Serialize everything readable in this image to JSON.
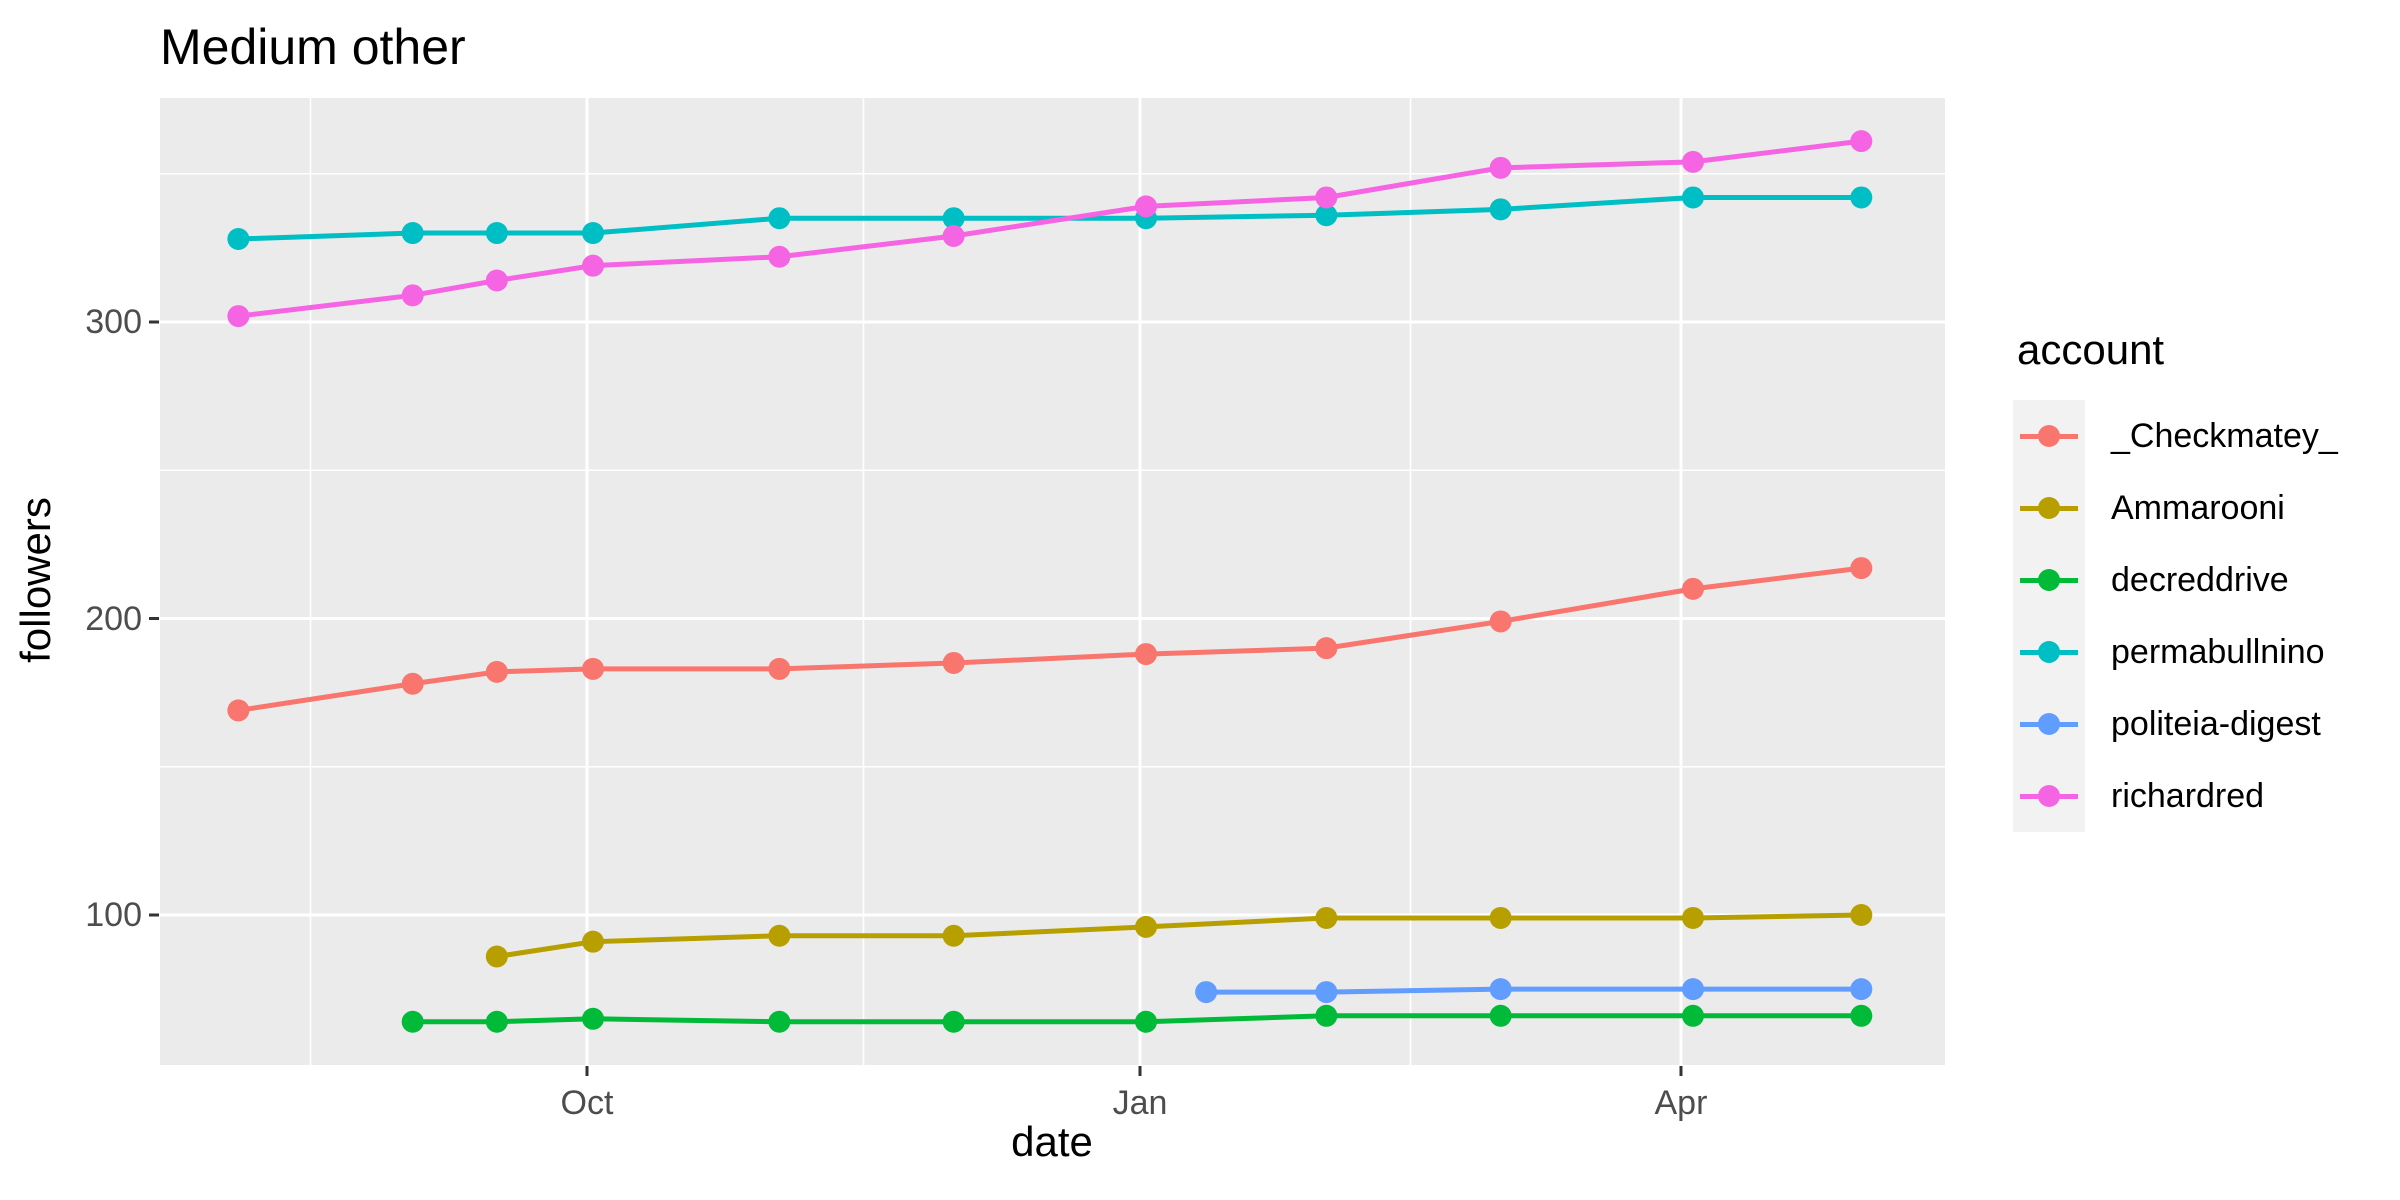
{
  "title": "Medium other",
  "axes": {
    "x": {
      "label": "date",
      "tick_labels": [
        "Oct",
        "Jan",
        "Apr"
      ]
    },
    "y": {
      "label": "followers",
      "tick_labels": [
        "100",
        "200",
        "300"
      ],
      "tick_values": [
        100,
        200,
        300
      ]
    }
  },
  "legend": {
    "title": "account",
    "entries": [
      "_Checkmatey_",
      "Ammarooni",
      "decreddrive",
      "permabullnino",
      "politeia-digest",
      "richardred"
    ]
  },
  "colors": {
    "panel_background": "#EBEBEB",
    "gridline": "#FFFFFF",
    "tick_text": "#4D4D4D",
    "tick_mark": "#333333",
    "legend_key_background": "#F2F2F2",
    "series": {
      "_Checkmatey_": "#F8766D",
      "Ammarooni": "#B79F00",
      "decreddrive": "#00BA38",
      "permabullnino": "#00BFC4",
      "politeia-digest": "#619CFF",
      "richardred": "#F564E3"
    }
  },
  "chart_data": {
    "type": "line",
    "title": "Medium other",
    "xlabel": "date",
    "ylabel": "followers",
    "x_major_ticks": [
      "Oct 1",
      "Jan 1",
      "Apr 1"
    ],
    "x_tick_labels": [
      "Oct",
      "Jan",
      "Apr"
    ],
    "x_minor_ticks": [
      "Aug 16",
      "Nov 16",
      "Feb 15"
    ],
    "y_major_ticks": [
      100,
      200,
      300
    ],
    "y_minor_ticks": [
      150,
      250,
      350
    ],
    "ylim": [
      49,
      376
    ],
    "xlim": [
      "Jul 22",
      "May 15"
    ],
    "grid": true,
    "legend_position": "right",
    "legend_title": "account",
    "marker": "circle",
    "series": [
      {
        "name": "_Checkmatey_",
        "color": "#F8766D",
        "points": [
          [
            "Aug 4",
            169
          ],
          [
            "Sep 2",
            178
          ],
          [
            "Sep 16",
            182
          ],
          [
            "Oct 2",
            183
          ],
          [
            "Nov 2",
            183
          ],
          [
            "Dec 1",
            185
          ],
          [
            "Jan 2",
            188
          ],
          [
            "Feb 1",
            190
          ],
          [
            "Mar 2",
            199
          ],
          [
            "Apr 3",
            210
          ],
          [
            "May 1",
            217
          ]
        ]
      },
      {
        "name": "Ammarooni",
        "color": "#B79F00",
        "points": [
          [
            "Sep 16",
            86
          ],
          [
            "Oct 2",
            91
          ],
          [
            "Nov 2",
            93
          ],
          [
            "Dec 1",
            93
          ],
          [
            "Jan 2",
            96
          ],
          [
            "Feb 1",
            99
          ],
          [
            "Mar 2",
            99
          ],
          [
            "Apr 3",
            99
          ],
          [
            "May 1",
            100
          ]
        ]
      },
      {
        "name": "decreddrive",
        "color": "#00BA38",
        "points": [
          [
            "Sep 2",
            64
          ],
          [
            "Sep 16",
            64
          ],
          [
            "Oct 2",
            65
          ],
          [
            "Nov 2",
            64
          ],
          [
            "Dec 1",
            64
          ],
          [
            "Jan 2",
            64
          ],
          [
            "Feb 1",
            66
          ],
          [
            "Mar 2",
            66
          ],
          [
            "Apr 3",
            66
          ],
          [
            "May 1",
            66
          ]
        ]
      },
      {
        "name": "permabullnino",
        "color": "#00BFC4",
        "points": [
          [
            "Aug 4",
            328
          ],
          [
            "Sep 2",
            330
          ],
          [
            "Sep 16",
            330
          ],
          [
            "Oct 2",
            330
          ],
          [
            "Nov 2",
            335
          ],
          [
            "Dec 1",
            335
          ],
          [
            "Jan 2",
            335
          ],
          [
            "Feb 1",
            336
          ],
          [
            "Mar 2",
            338
          ],
          [
            "Apr 3",
            342
          ],
          [
            "May 1",
            342
          ]
        ]
      },
      {
        "name": "politeia-digest",
        "color": "#619CFF",
        "points": [
          [
            "Jan 12",
            74
          ],
          [
            "Feb 1",
            74
          ],
          [
            "Mar 2",
            75
          ],
          [
            "Apr 3",
            75
          ],
          [
            "May 1",
            75
          ]
        ]
      },
      {
        "name": "richardred",
        "color": "#F564E3",
        "points": [
          [
            "Aug 4",
            302
          ],
          [
            "Sep 2",
            309
          ],
          [
            "Sep 16",
            314
          ],
          [
            "Oct 2",
            319
          ],
          [
            "Nov 2",
            322
          ],
          [
            "Dec 1",
            329
          ],
          [
            "Jan 2",
            339
          ],
          [
            "Feb 1",
            342
          ],
          [
            "Mar 2",
            352
          ],
          [
            "Apr 3",
            354
          ],
          [
            "May 1",
            361
          ]
        ]
      }
    ]
  }
}
